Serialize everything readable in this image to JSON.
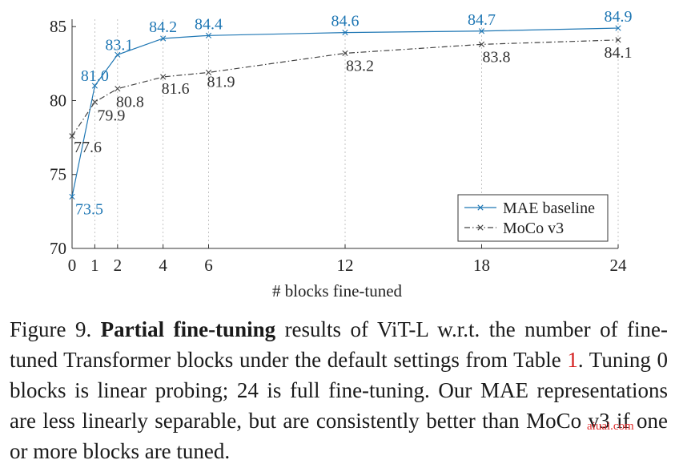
{
  "chart_data": {
    "type": "line",
    "title": "",
    "xlabel": "# blocks fine-tuned",
    "ylabel": "",
    "xlim": [
      0,
      24
    ],
    "ylim": [
      70,
      85.5
    ],
    "x_ticks": [
      0,
      1,
      2,
      4,
      6,
      12,
      18,
      24
    ],
    "x_tick_labels": [
      "0",
      "1",
      "2",
      "4",
      "6",
      "12",
      "18",
      "24"
    ],
    "y_ticks": [
      70,
      75,
      80,
      85
    ],
    "y_tick_labels": [
      "70",
      "75",
      "80",
      "85"
    ],
    "grid": "vertical dashed at x ticks",
    "legend_position": "lower-right",
    "series": [
      {
        "name": "MAE baseline",
        "color": "#1f77b4",
        "line_style": "solid",
        "marker": "x",
        "x": [
          0,
          1,
          2,
          4,
          6,
          12,
          18,
          24
        ],
        "values": [
          73.5,
          81.0,
          83.1,
          84.2,
          84.4,
          84.6,
          84.7,
          84.9
        ],
        "labels": [
          "73.5",
          "81.0",
          "83.1",
          "84.2",
          "84.4",
          "84.6",
          "84.7",
          "84.9"
        ]
      },
      {
        "name": "MoCo v3",
        "color": "#444444",
        "line_style": "dash-dot",
        "marker": "x",
        "x": [
          0,
          1,
          2,
          4,
          6,
          12,
          18,
          24
        ],
        "values": [
          77.6,
          79.9,
          80.8,
          81.6,
          81.9,
          83.2,
          83.8,
          84.1
        ],
        "labels": [
          "77.6",
          "79.9",
          "80.8",
          "81.6",
          "81.9",
          "83.2",
          "83.8",
          "84.1"
        ]
      }
    ]
  },
  "caption": {
    "prefix": "Figure 9.",
    "bold": "Partial fine-tuning",
    "text_1": "results of ViT-L w.r.t. the number of fine-tuned Transformer blocks under the default settings from Table",
    "ref": "1",
    "text_2": ". Tuning 0 blocks is linear probing; 24 is full fine-tuning. Our MAE representations are less linearly separable, but are consistently better than MoCo v3 if one or more blocks are tuned."
  },
  "watermark": "aiuai.com"
}
